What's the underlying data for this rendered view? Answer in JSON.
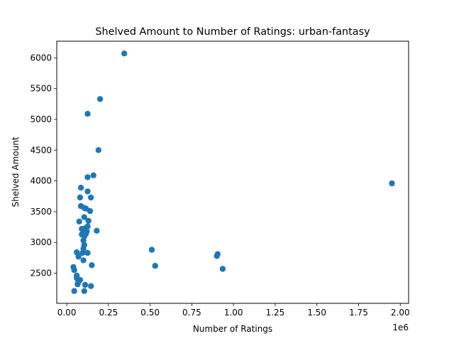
{
  "chart_data": {
    "type": "scatter",
    "title": "Shelved Amount to Number of Ratings: urban-fantasy",
    "xlabel": "Number of Ratings",
    "ylabel": "Shelved Amount",
    "x_scale_label": "1e6",
    "xlim": [
      -60000,
      2050000
    ],
    "ylim": [
      2010,
      6270
    ],
    "xticks": [
      0,
      250000,
      500000,
      750000,
      1000000,
      1250000,
      1500000,
      1750000,
      2000000
    ],
    "xtick_labels": [
      "0.00",
      "0.25",
      "0.50",
      "0.75",
      "1.00",
      "1.25",
      "1.50",
      "1.75",
      "2.00"
    ],
    "yticks": [
      2500,
      3000,
      3500,
      4000,
      4500,
      5000,
      5500,
      6000
    ],
    "ytick_labels": [
      "2500",
      "3000",
      "3500",
      "4000",
      "4500",
      "5000",
      "5500",
      "6000"
    ],
    "grid": false,
    "marker_color": "#1f77b4",
    "points": [
      [
        345000,
        6070
      ],
      [
        200000,
        5330
      ],
      [
        125000,
        5090
      ],
      [
        190000,
        4500
      ],
      [
        160000,
        4090
      ],
      [
        125000,
        4060
      ],
      [
        85000,
        3890
      ],
      [
        125000,
        3830
      ],
      [
        80000,
        3730
      ],
      [
        145000,
        3730
      ],
      [
        85000,
        3590
      ],
      [
        105000,
        3560
      ],
      [
        115000,
        3550
      ],
      [
        140000,
        3510
      ],
      [
        105000,
        3410
      ],
      [
        75000,
        3340
      ],
      [
        130000,
        3350
      ],
      [
        125000,
        3260
      ],
      [
        90000,
        3220
      ],
      [
        110000,
        3230
      ],
      [
        100000,
        3190
      ],
      [
        120000,
        3180
      ],
      [
        180000,
        3190
      ],
      [
        90000,
        3130
      ],
      [
        115000,
        3140
      ],
      [
        105000,
        3100
      ],
      [
        100000,
        3030
      ],
      [
        105000,
        2960
      ],
      [
        100000,
        2900
      ],
      [
        60000,
        2840
      ],
      [
        95000,
        2830
      ],
      [
        125000,
        2830
      ],
      [
        70000,
        2770
      ],
      [
        100000,
        2710
      ],
      [
        510000,
        2880
      ],
      [
        900000,
        2780
      ],
      [
        905000,
        2810
      ],
      [
        150000,
        2630
      ],
      [
        530000,
        2620
      ],
      [
        935000,
        2570
      ],
      [
        40000,
        2600
      ],
      [
        45000,
        2550
      ],
      [
        60000,
        2460
      ],
      [
        60000,
        2420
      ],
      [
        80000,
        2390
      ],
      [
        70000,
        2360
      ],
      [
        65000,
        2320
      ],
      [
        110000,
        2310
      ],
      [
        145000,
        2290
      ],
      [
        45000,
        2210
      ],
      [
        105000,
        2210
      ],
      [
        1950000,
        3960
      ]
    ]
  }
}
